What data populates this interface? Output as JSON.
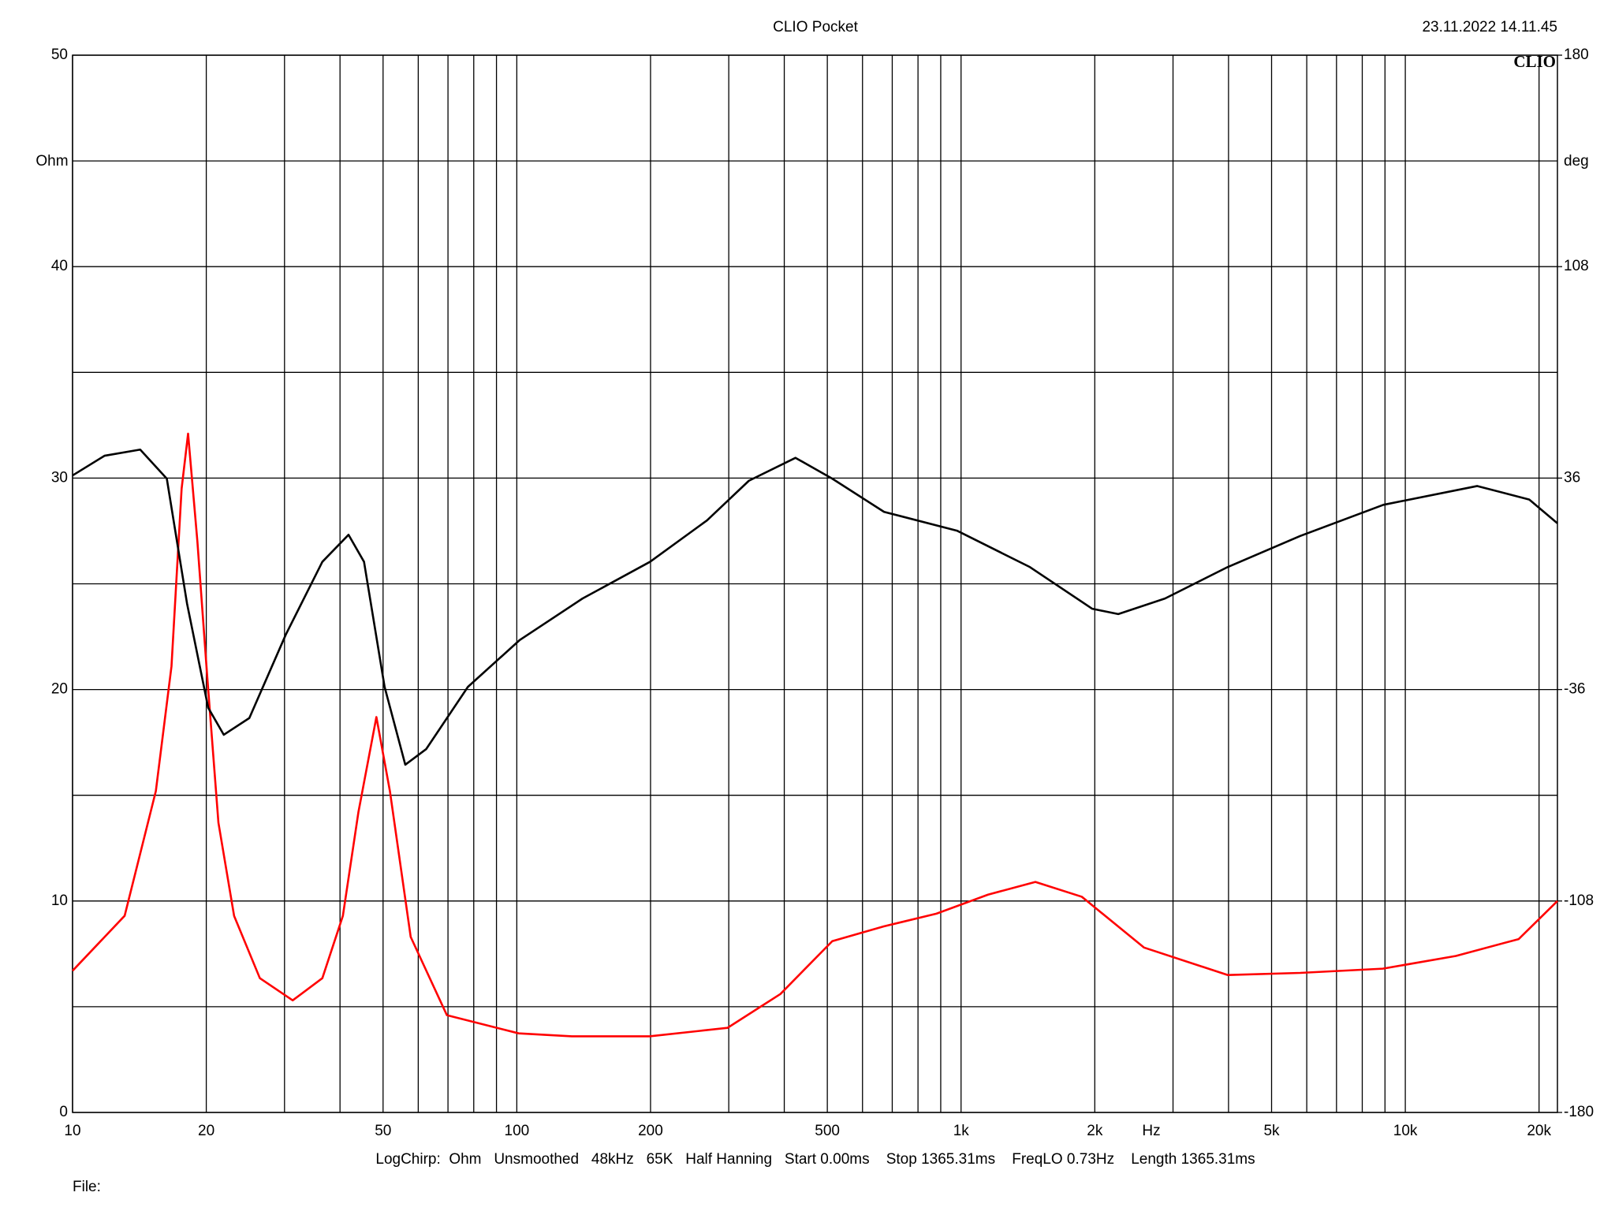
{
  "chart_data": {
    "type": "line",
    "title": "CLIO Pocket",
    "timestamp": "23.11.2022 14.11.45",
    "logo": "CLIO",
    "footer": "LogChirp:  Ohm   Unsmoothed   48kHz   65K   Half Hanning   Start 0.00ms    Stop 1365.31ms    FreqLO 0.73Hz    Length 1365.31ms",
    "file_label": "File:",
    "x_label": "Hz",
    "y_label": "Ohm",
    "y2_label": "deg",
    "xlog": true,
    "grid": true,
    "xlim": [
      10,
      22000
    ],
    "xticks": [
      10,
      20,
      50,
      100,
      200,
      500,
      {
        "value": 1000,
        "label": "1k"
      },
      {
        "value": 2000,
        "label": "2k"
      },
      {
        "value": 5000,
        "label": "5k"
      },
      {
        "value": 10000,
        "label": "10k"
      },
      {
        "value": 20000,
        "label": "20k"
      }
    ],
    "xminor": [
      30,
      40,
      60,
      70,
      80,
      90,
      300,
      400,
      600,
      700,
      800,
      900,
      3000,
      4000,
      6000,
      7000,
      8000,
      9000
    ],
    "ylim": [
      0,
      50
    ],
    "yticks": [
      0,
      10,
      20,
      30,
      40,
      50
    ],
    "yminor": [
      5,
      15,
      25,
      35,
      45
    ],
    "y2lim": [
      -180,
      180
    ],
    "y2ticks": [
      -180,
      -108,
      -36,
      36,
      108,
      180
    ],
    "series": [
      {
        "color": "#ff0000",
        "x": [
          10,
          13.1,
          15.4,
          16.7,
          17.6,
          18.2,
          19.1,
          20.1,
          21.3,
          23.1,
          26.4,
          31.3,
          36.5,
          40.6,
          44,
          48.3,
          51.8,
          57.7,
          69.6,
          101,
          133,
          199,
          298,
          392,
          513,
          670,
          880,
          1150,
          1470,
          1870,
          2580,
          3980,
          5800,
          8900,
          13000,
          18000,
          22000
        ],
        "values": [
          6.7,
          9.3,
          15.2,
          21.1,
          29.5,
          32.1,
          27.0,
          20.6,
          13.7,
          9.3,
          6.35,
          5.3,
          6.35,
          9.3,
          14.2,
          18.7,
          15.2,
          8.3,
          4.6,
          3.74,
          3.6,
          3.6,
          4.0,
          5.6,
          8.1,
          8.8,
          9.4,
          10.3,
          10.9,
          10.2,
          7.8,
          6.5,
          6.6,
          6.8,
          7.4,
          8.2,
          10.0
        ]
      },
      {
        "color": "#000000",
        "axis": "y2",
        "x": [
          10,
          11.8,
          14.2,
          16.3,
          18.1,
          20.2,
          21.9,
          25.0,
          30.2,
          36.5,
          41.8,
          45.3,
          50.4,
          56.1,
          62.5,
          77.6,
          101.6,
          140.6,
          199.5,
          268,
          333,
          424,
          513,
          671,
          979,
          1429,
          1974,
          2259,
          2878,
          3981,
          5800,
          8925,
          14520,
          19010,
          22000
        ],
        "values": [
          36.9,
          43.6,
          45.7,
          35.8,
          -6.7,
          -42.2,
          -51.4,
          -45.7,
          -17.3,
          7.5,
          16.7,
          7.5,
          -35.1,
          -61.6,
          -56.3,
          -35.1,
          -19.1,
          -5.0,
          7.5,
          21.6,
          35.1,
          42.9,
          35.8,
          24.5,
          18.1,
          5.7,
          -8.5,
          -10.3,
          -5.0,
          5.7,
          16.3,
          26.9,
          33.3,
          28.7,
          20.6
        ]
      }
    ]
  }
}
